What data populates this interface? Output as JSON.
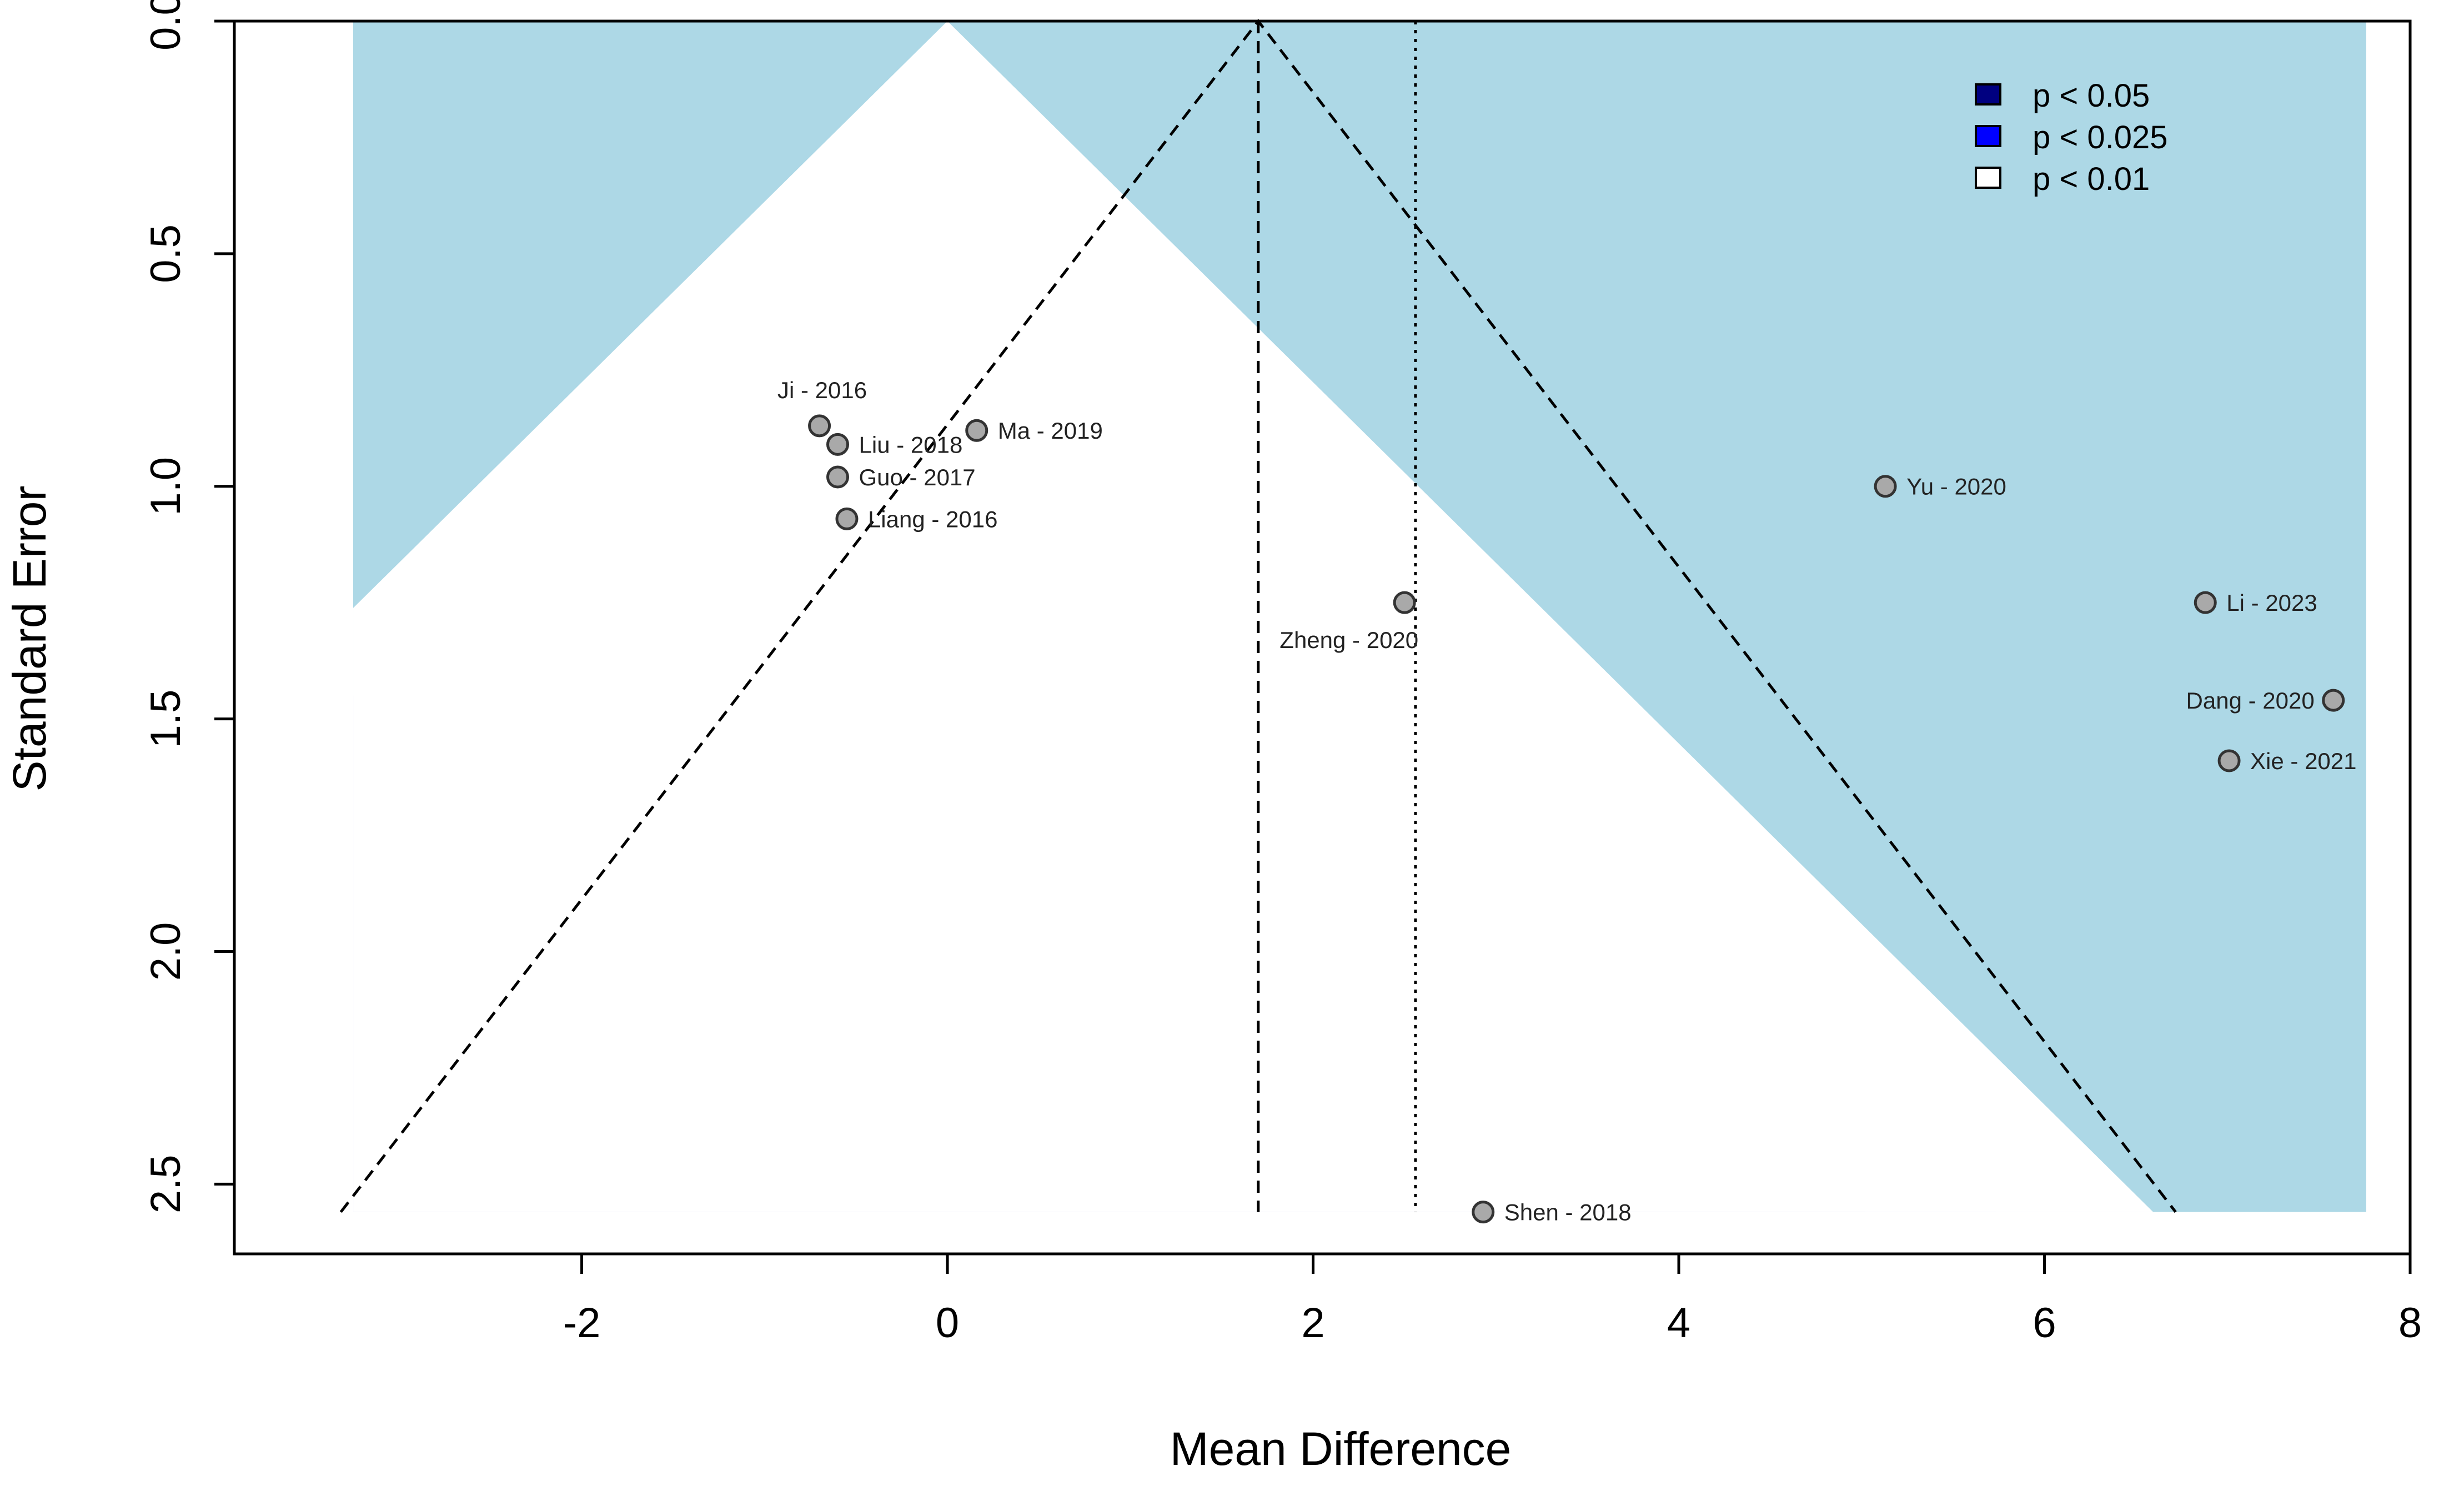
{
  "colors": {
    "background_region": "#add8e6",
    "band_p05": "#000080",
    "band_p025": "#0000ff",
    "band_p01": "#ffffff",
    "point_fill": "#a9a9a9",
    "point_stroke": "#333333",
    "axis": "#000000"
  },
  "chart_data": {
    "type": "scatter",
    "subtype": "contour-enhanced funnel plot",
    "title": "",
    "xlabel": "Mean Difference",
    "ylabel": "Standard Error",
    "xlim": [
      -3.9,
      8.0
    ],
    "ylim_reversed": [
      0.0,
      2.65
    ],
    "xticks": [
      -2,
      0,
      2,
      4,
      6,
      8
    ],
    "xtick_labels": [
      "-2",
      "0",
      "2",
      "4",
      "6",
      "8"
    ],
    "yticks": [
      0.0,
      0.5,
      1.0,
      1.5,
      2.0,
      2.5
    ],
    "ytick_labels": [
      "0.0",
      "0.5",
      "1.0",
      "1.5",
      "2.0",
      "2.5"
    ],
    "max_se": 2.56,
    "shaded_xrange": [
      -3.25,
      7.76
    ],
    "contour_center": 0,
    "contours": [
      {
        "label": "p < 0.05",
        "z": 1.96
      },
      {
        "label": "p < 0.025",
        "z": 2.241
      },
      {
        "label": "p < 0.01",
        "z": 2.576
      }
    ],
    "pooled_estimate_dashed": 1.7,
    "reference_line_dotted": 2.56,
    "pseudo_ci_z": 1.96,
    "legend": {
      "position": "top-right",
      "entries": [
        {
          "label": "p < 0.05",
          "color": "#000080"
        },
        {
          "label": "p < 0.025",
          "color": "#0000ff"
        },
        {
          "label": "p < 0.01",
          "color": "#ffffff"
        }
      ]
    },
    "studies": [
      {
        "label": "Ji - 2016",
        "md": -0.7,
        "se": 0.87,
        "label_pos": "above"
      },
      {
        "label": "Liu - 2018",
        "md": -0.6,
        "se": 0.91,
        "label_pos": "right"
      },
      {
        "label": "Ma - 2019",
        "md": 0.16,
        "se": 0.88,
        "label_pos": "right"
      },
      {
        "label": "Guo - 2017",
        "md": -0.6,
        "se": 0.98,
        "label_pos": "right"
      },
      {
        "label": "Liang - 2016",
        "md": -0.55,
        "se": 1.07,
        "label_pos": "right"
      },
      {
        "label": "Zheng - 2020",
        "md": 2.5,
        "se": 1.25,
        "label_pos": "below-left"
      },
      {
        "label": "Yu - 2020",
        "md": 5.13,
        "se": 1.0,
        "label_pos": "right"
      },
      {
        "label": "Li - 2023",
        "md": 6.88,
        "se": 1.25,
        "label_pos": "right"
      },
      {
        "label": "Dang - 2020",
        "md": 7.58,
        "se": 1.46,
        "label_pos": "left"
      },
      {
        "label": "Xie - 2021",
        "md": 7.01,
        "se": 1.59,
        "label_pos": "right"
      },
      {
        "label": "Shen - 2018",
        "md": 2.93,
        "se": 2.56,
        "label_pos": "right"
      }
    ]
  }
}
